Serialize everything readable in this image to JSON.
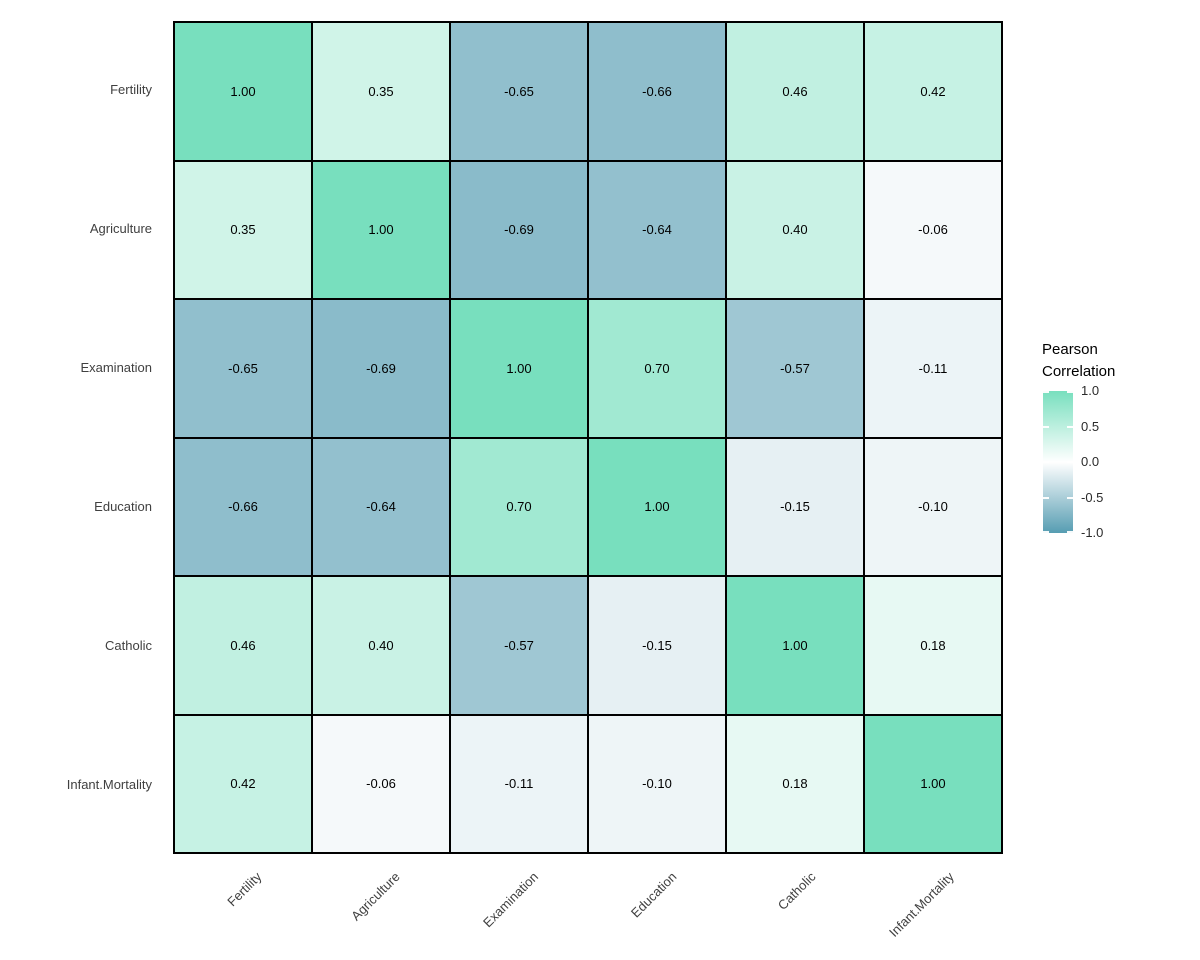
{
  "chart_data": {
    "type": "heatmap",
    "title": "",
    "xlabel": "",
    "ylabel": "",
    "variables": [
      "Fertility",
      "Agriculture",
      "Examination",
      "Education",
      "Catholic",
      "Infant.Mortality"
    ],
    "matrix": [
      [
        1.0,
        0.35,
        -0.65,
        -0.66,
        0.46,
        0.42
      ],
      [
        0.35,
        1.0,
        -0.69,
        -0.64,
        0.4,
        -0.06
      ],
      [
        -0.65,
        -0.69,
        1.0,
        0.7,
        -0.57,
        -0.11
      ],
      [
        -0.66,
        -0.64,
        0.7,
        1.0,
        -0.15,
        -0.1
      ],
      [
        0.46,
        0.4,
        -0.57,
        -0.15,
        1.0,
        0.18
      ],
      [
        0.42,
        -0.06,
        -0.11,
        -0.1,
        0.18,
        1.0
      ]
    ],
    "cell_value_decimals": 2,
    "legend": {
      "title_lines": [
        "Pearson",
        "Correlation"
      ],
      "ticks": [
        1.0,
        0.5,
        0.0,
        -0.5,
        -1.0
      ],
      "tick_decimals": 1,
      "range": [
        -1,
        1
      ],
      "position": "right"
    },
    "colors": {
      "high": "#78DFBE",
      "mid": "#FFFFFF",
      "low": "#569DB2",
      "cell_border": "#000000",
      "axis_text": "#404040",
      "value_text": "#000000"
    },
    "grid": "off"
  }
}
